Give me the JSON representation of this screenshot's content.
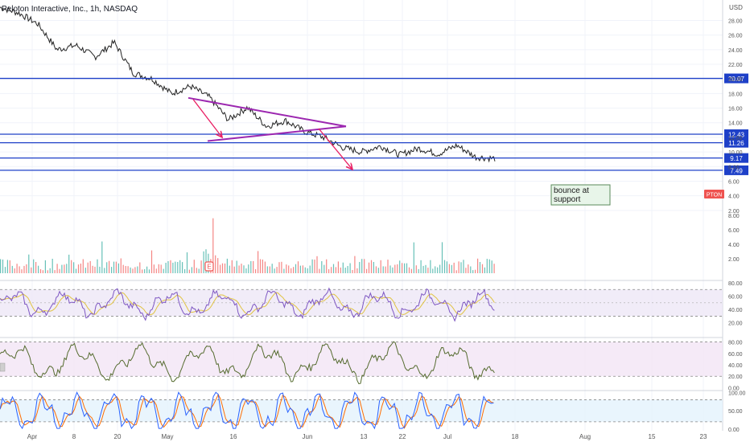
{
  "header": {
    "title": "Peloton Interactive, Inc., 1h, NASDAQ"
  },
  "note": {
    "line1": "bounce at",
    "line2": "support"
  },
  "colors": {
    "level": "#1e40c8",
    "trendline": "#9c27b0",
    "arrow": "#e91e63",
    "price": "#222222",
    "up": "#26a69a",
    "down": "#ef5350",
    "rsi": "#7e57c2",
    "rsi_ma": "#e0c341",
    "osc2": "#556b2f",
    "stoch_k": "#2962ff",
    "stoch_d": "#ff6d00",
    "ticker_bg": "#ef5350",
    "level_label_bg": "#1e40c8",
    "note_bg": "#e8f5e9"
  },
  "chart_data": {
    "type": "line",
    "symbol": "PTON",
    "title": "Peloton Interactive, Inc., 1h, NASDAQ",
    "price_axis": {
      "unit": "USD",
      "ticks": [
        2.0,
        4.0,
        6.0,
        8.0,
        10.0,
        12.0,
        14.0,
        16.0,
        18.0,
        20.0,
        22.0,
        24.0,
        26.0,
        28.0
      ],
      "range": [
        0,
        30.8
      ]
    },
    "time_axis": {
      "ticks": [
        "Apr",
        "8",
        "20",
        "May",
        "16",
        "Jun",
        "13",
        "22",
        "Jul",
        "18",
        "Aug",
        "15",
        "23"
      ]
    },
    "last_price": 9.17,
    "levels": [
      20.07,
      12.43,
      11.26,
      9.17,
      7.49
    ],
    "level_labels": [
      "20.07",
      "12.43",
      "11.26",
      "9.17",
      "7.49"
    ],
    "triangle": {
      "upper_start": 17.4,
      "apex": 13.5,
      "lower_start": 11.5
    },
    "arrows": [
      {
        "from_price": 17.2,
        "to_price": 12.0
      },
      {
        "from_price": 13.2,
        "to_price": 7.6
      }
    ],
    "price_anchors": [
      29.8,
      29.0,
      27.5,
      24.0,
      24.6,
      23.0,
      25.0,
      20.8,
      20.0,
      18.0,
      19.0,
      17.5,
      14.4,
      16.1,
      13.5,
      14.3,
      12.8,
      12.0,
      10.6,
      10.0,
      10.8,
      9.6,
      10.5,
      9.7,
      10.9,
      9.3,
      9.1
    ],
    "volume_axis": {
      "ticks": [
        2.0,
        4.0,
        6.0,
        8.0
      ],
      "range": [
        0,
        8
      ]
    },
    "rsi_panel": {
      "ticks": [
        20.0,
        40.0,
        60.0,
        80.0
      ],
      "bands": [
        30,
        70
      ],
      "range": [
        10,
        80
      ]
    },
    "osc_panel": {
      "ticks": [
        0.0,
        20.0,
        40.0,
        60.0,
        80.0
      ],
      "bands": [
        20,
        80
      ],
      "range": [
        -5,
        85
      ]
    },
    "stoch_panel": {
      "ticks": [
        0.0,
        50.0,
        100.0
      ],
      "bands": [
        20,
        80
      ],
      "range": [
        0,
        105
      ]
    }
  }
}
